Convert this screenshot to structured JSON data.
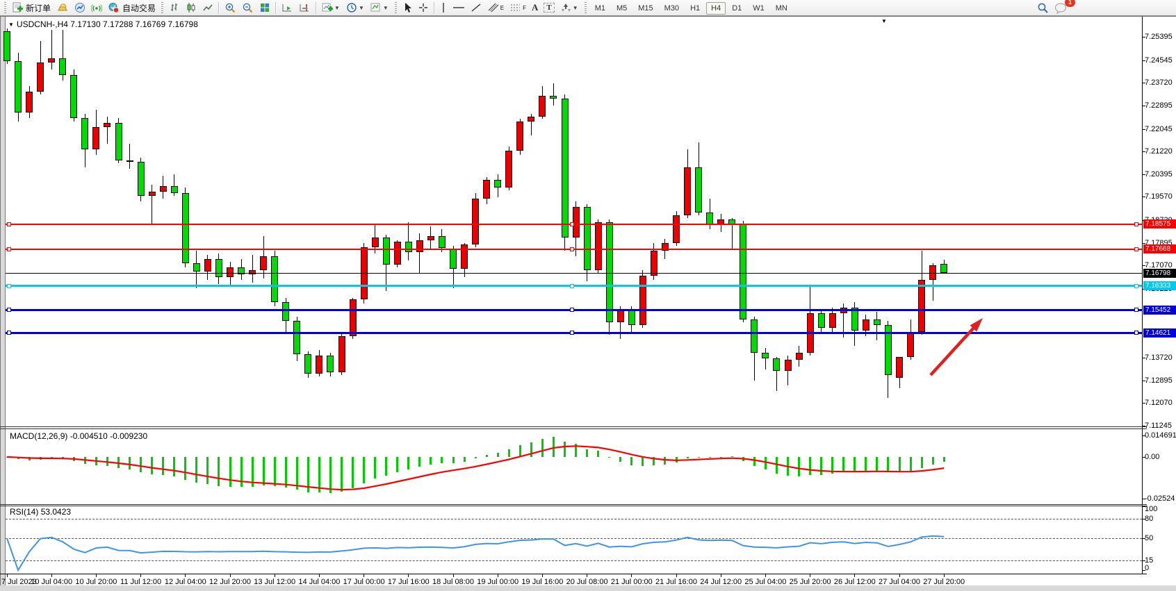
{
  "toolbar": {
    "new_order_label": "新订单",
    "auto_trading_label": "自动交易",
    "timeframes": [
      "M1",
      "M5",
      "M15",
      "M30",
      "H1",
      "H4",
      "D1",
      "W1",
      "MN"
    ],
    "active_timeframe": "H4",
    "notification_badge": "1",
    "tool_letters": {
      "text": "A",
      "label": "T",
      "channel": "E",
      "fibo": "F"
    }
  },
  "chart": {
    "symbol": "USDCNH-,H4",
    "open": "7.17130",
    "high": "7.17288",
    "low": "7.16769",
    "close": "7.16798",
    "price_ticks": [
      "7.25395",
      "7.24545",
      "7.23720",
      "7.22895",
      "7.22045",
      "7.21220",
      "7.20395",
      "7.19570",
      "7.18720",
      "7.17895",
      "7.17070",
      "7.16220",
      "7.13720",
      "7.12895",
      "7.12070",
      "7.11245"
    ],
    "horizontal_lines": [
      {
        "price": 7.18575,
        "label": "7.18575",
        "color": "#FF0000",
        "width": 2
      },
      {
        "price": 7.17668,
        "label": "7.17668",
        "color": "#FF0000",
        "width": 2
      },
      {
        "price": 7.16333,
        "label": "7.16333",
        "color": "#00C8F0",
        "width": 3
      },
      {
        "price": 7.15452,
        "label": "7.15452",
        "color": "#0000D8",
        "width": 3
      },
      {
        "price": 7.14621,
        "label": "7.14621",
        "color": "#0000D8",
        "width": 3
      }
    ],
    "current_price": {
      "price": 7.16798,
      "label": "7.16798",
      "color": "#000000"
    },
    "arrow_annotation": {
      "color": "#E02020"
    },
    "chart_data": {
      "type": "candlestick",
      "timeframe": "H4",
      "up_color": "#EE0000",
      "down_color": "#00DC00",
      "ylim": [
        7.11245,
        7.25845
      ],
      "x_labels": [
        "7 Jul 2023",
        "10 Jul 04:00",
        "10 Jul 20:00",
        "11 Jul 12:00",
        "12 Jul 04:00",
        "12 Jul 20:00",
        "13 Jul 12:00",
        "14 Jul 04:00",
        "17 Jul 00:00",
        "17 Jul 16:00",
        "18 Jul 08:00",
        "19 Jul 00:00",
        "19 Jul 16:00",
        "20 Jul 08:00",
        "21 Jul 00:00",
        "21 Jul 16:00",
        "24 Jul 12:00",
        "25 Jul 04:00",
        "25 Jul 20:00",
        "26 Jul 12:00",
        "27 Jul 04:00",
        "27 Jul 20:00"
      ],
      "bars_per_label": 4,
      "candles_ohlc": [
        [
          7.256,
          7.257,
          7.244,
          7.245
        ],
        [
          7.245,
          7.248,
          7.223,
          7.2265
        ],
        [
          7.2265,
          7.236,
          7.2245,
          7.234
        ],
        [
          7.234,
          7.2525,
          7.233,
          7.2445
        ],
        [
          7.2445,
          7.2565,
          7.242,
          7.246
        ],
        [
          7.246,
          7.2565,
          7.238,
          7.24
        ],
        [
          7.24,
          7.242,
          7.223,
          7.2245
        ],
        [
          7.2245,
          7.226,
          7.2065,
          7.213
        ],
        [
          7.213,
          7.2275,
          7.211,
          7.221
        ],
        [
          7.221,
          7.225,
          7.215,
          7.2225
        ],
        [
          7.2225,
          7.2245,
          7.208,
          7.209
        ],
        [
          7.209,
          7.215,
          7.206,
          7.2085
        ],
        [
          7.2085,
          7.21,
          7.194,
          7.196
        ],
        [
          7.196,
          7.2,
          7.1855,
          7.1975
        ],
        [
          7.1975,
          7.2035,
          7.195,
          7.1995
        ],
        [
          7.1995,
          7.204,
          7.196,
          7.197
        ],
        [
          7.197,
          7.199,
          7.17,
          7.1715
        ],
        [
          7.1715,
          7.176,
          7.1625,
          7.1685
        ],
        [
          7.1685,
          7.1745,
          7.1655,
          7.173
        ],
        [
          7.173,
          7.175,
          7.164,
          7.1665
        ],
        [
          7.1665,
          7.172,
          7.163,
          7.17
        ],
        [
          7.17,
          7.173,
          7.1655,
          7.1675
        ],
        [
          7.1675,
          7.1745,
          7.1645,
          7.169
        ],
        [
          7.169,
          7.1815,
          7.166,
          7.174
        ],
        [
          7.174,
          7.176,
          7.156,
          7.1575
        ],
        [
          7.1575,
          7.159,
          7.1465,
          7.1505
        ],
        [
          7.1505,
          7.152,
          7.136,
          7.1385
        ],
        [
          7.1385,
          7.1395,
          7.13,
          7.1315
        ],
        [
          7.1315,
          7.14,
          7.1305,
          7.138
        ],
        [
          7.138,
          7.139,
          7.1305,
          7.132
        ],
        [
          7.132,
          7.146,
          7.131,
          7.145
        ],
        [
          7.145,
          7.159,
          7.144,
          7.1585
        ],
        [
          7.1585,
          7.179,
          7.157,
          7.1775
        ],
        [
          7.1775,
          7.186,
          7.175,
          7.181
        ],
        [
          7.181,
          7.182,
          7.1615,
          7.171
        ],
        [
          7.171,
          7.18,
          7.17,
          7.1795
        ],
        [
          7.1795,
          7.1865,
          7.1725,
          7.1755
        ],
        [
          7.1755,
          7.1825,
          7.168,
          7.18
        ],
        [
          7.18,
          7.185,
          7.177,
          7.1815
        ],
        [
          7.1815,
          7.184,
          7.1755,
          7.177
        ],
        [
          7.177,
          7.178,
          7.1625,
          7.1695
        ],
        [
          7.1695,
          7.179,
          7.1665,
          7.1785
        ],
        [
          7.1785,
          7.197,
          7.1775,
          7.195
        ],
        [
          7.195,
          7.203,
          7.193,
          7.202
        ],
        [
          7.202,
          7.204,
          7.1955,
          7.199
        ],
        [
          7.199,
          7.214,
          7.198,
          7.2125
        ],
        [
          7.2125,
          7.224,
          7.211,
          7.223
        ],
        [
          7.223,
          7.226,
          7.218,
          7.225
        ],
        [
          7.225,
          7.236,
          7.224,
          7.2325
        ],
        [
          7.2325,
          7.237,
          7.229,
          7.2315
        ],
        [
          7.2315,
          7.233,
          7.176,
          7.181
        ],
        [
          7.181,
          7.194,
          7.174,
          7.192
        ],
        [
          7.192,
          7.193,
          7.165,
          7.169
        ],
        [
          7.169,
          7.1875,
          7.168,
          7.1865
        ],
        [
          7.1865,
          7.1875,
          7.1455,
          7.15
        ],
        [
          7.15,
          7.156,
          7.144,
          7.1545
        ],
        [
          7.1545,
          7.156,
          7.1465,
          7.149
        ],
        [
          7.149,
          7.169,
          7.148,
          7.167
        ],
        [
          7.167,
          7.179,
          7.1655,
          7.176
        ],
        [
          7.176,
          7.1805,
          7.173,
          7.179
        ],
        [
          7.179,
          7.1905,
          7.178,
          7.189
        ],
        [
          7.189,
          7.213,
          7.188,
          7.2065
        ],
        [
          7.2065,
          7.2155,
          7.189,
          7.19
        ],
        [
          7.19,
          7.195,
          7.184,
          7.1855
        ],
        [
          7.1855,
          7.1895,
          7.183,
          7.1875
        ],
        [
          7.1875,
          7.188,
          7.1763,
          7.1858
        ],
        [
          7.1858,
          7.187,
          7.15,
          7.151
        ],
        [
          7.151,
          7.152,
          7.1288,
          7.139
        ],
        [
          7.139,
          7.1408,
          7.133,
          7.137
        ],
        [
          7.137,
          7.1375,
          7.125,
          7.1325
        ],
        [
          7.1325,
          7.138,
          7.127,
          7.1365
        ],
        [
          7.1365,
          7.1415,
          7.134,
          7.139
        ],
        [
          7.139,
          7.163,
          7.138,
          7.1535
        ],
        [
          7.1535,
          7.155,
          7.146,
          7.148
        ],
        [
          7.148,
          7.1555,
          7.1465,
          7.1535
        ],
        [
          7.1535,
          7.157,
          7.1445,
          7.1555
        ],
        [
          7.1555,
          7.1575,
          7.1415,
          7.147
        ],
        [
          7.147,
          7.153,
          7.145,
          7.151
        ],
        [
          7.151,
          7.154,
          7.1435,
          7.149
        ],
        [
          7.149,
          7.1505,
          7.1225,
          7.131
        ],
        [
          7.13,
          7.133,
          7.126,
          7.1375
        ],
        [
          7.1375,
          7.151,
          7.1365,
          7.1465
        ],
        [
          7.1465,
          7.176,
          7.1455,
          7.1655
        ],
        [
          7.1655,
          7.1715,
          7.158,
          7.1708
        ],
        [
          7.1713,
          7.17288,
          7.16769,
          7.16798
        ]
      ]
    }
  },
  "macd": {
    "title": "MACD(12,26,9)",
    "fast": 12,
    "slow": 26,
    "signal": 9,
    "value_main": "-0.004510",
    "value_signal": "-0.009230",
    "axis_ticks": [
      "0.014691",
      "0.00",
      "-0.02524"
    ],
    "histogram_color": "#00CC00",
    "signal_color": "#FF0000"
  },
  "rsi": {
    "title": "RSI(14)",
    "period": 14,
    "value": "53.0423",
    "levels": [
      "100",
      "80",
      "50",
      "15",
      "0"
    ],
    "dashed_levels": [
      80,
      50,
      15
    ],
    "line_color": "#3E95E8"
  }
}
